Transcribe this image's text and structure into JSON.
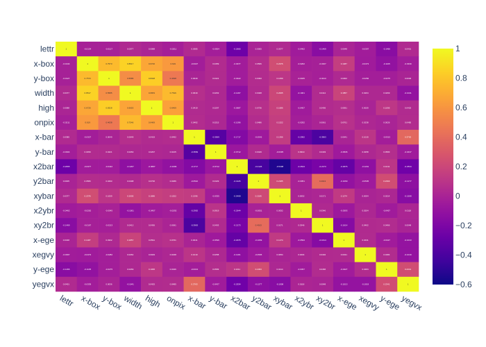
{
  "chart_data": {
    "type": "heatmap",
    "title": "",
    "xlabel": "",
    "ylabel": "",
    "categories": [
      "lettr",
      "x-box",
      "y-box",
      "width",
      "high",
      "onpix",
      "x-bar",
      "y-bar",
      "x2bar",
      "y2bar",
      "xybar",
      "x2ybr",
      "xy2br",
      "x-ege",
      "xegvy",
      "y-ege",
      "yegvx"
    ],
    "values": [
      [
        1,
        -0.0134,
        -0.0127,
        0.0377,
        0.0088,
        -0.0211,
        0.0385,
        -0.0304,
        -0.2665,
        0.0005,
        0.0377,
        -0.0462,
        -0.1469,
        0.0048,
        -0.0397,
        -0.1466,
        0.0401
      ],
      [
        -0.0134,
        1,
        0.7573,
        0.8517,
        0.6726,
        0.619,
        -0.0327,
        0.0459,
        -0.0377,
        0.0566,
        0.2376,
        -0.0262,
        -0.0167,
        0.1487,
        -0.0473,
        -0.1105,
        -0.0339
      ],
      [
        -0.0127,
        0.7573,
        1,
        0.5585,
        0.8328,
        0.4638,
        0.0049,
        0.0421,
        -0.0422,
        0.0493,
        0.1059,
        -0.0045,
        -0.0213,
        0.0302,
        -0.0282,
        -0.0275,
        0.0036
      ],
      [
        0.0377,
        0.8517,
        0.5585,
        1,
        0.6653,
        0.7546,
        0.0649,
        0.0263,
        -0.1267,
        0.0408,
        0.2005,
        -0.1001,
        0.0412,
        0.1857,
        0.0264,
        0.0269,
        -0.1041
      ],
      [
        0.0088,
        0.6726,
        0.8328,
        0.6653,
        1,
        0.6469,
        0.0419,
        0.0297,
        -0.0687,
        0.0736,
        0.1686,
        -0.0457,
        0.0436,
        0.0591,
        0.0029,
        0.1095,
        0.0425
      ],
      [
        -0.0211,
        0.619,
        0.4638,
        0.7546,
        0.6469,
        1,
        0.0492,
        0.0215,
        -0.1096,
        0.0486,
        0.1522,
        -0.0292,
        0.0061,
        0.0761,
        0.0238,
        0.0026,
        0.0485
      ],
      [
        0.0385,
        -0.0327,
        0.0049,
        0.0649,
        0.0419,
        0.0492,
        1,
        -0.3569,
        -0.1717,
        -0.0542,
        0.1396,
        -0.2992,
        -0.3963,
        0.0041,
        0.1019,
        -0.0313,
        0.3763
      ],
      [
        -0.0304,
        0.0459,
        0.0421,
        0.0263,
        0.0297,
        0.0215,
        -0.3569,
        1,
        -0.0712,
        0.0429,
        -0.0335,
        0.0919,
        0.0403,
        -0.0536,
        0.0258,
        0.0583,
        -0.0437
      ],
      [
        -0.2665,
        -0.0377,
        -0.0422,
        -0.1267,
        -0.0687,
        -0.1096,
        -0.1717,
        -0.0712,
        1,
        -0.4126,
        -0.5408,
        -0.2644,
        -0.2173,
        -0.2976,
        -0.1201,
        0.1011,
        -0.2534
      ],
      [
        0.0005,
        0.0566,
        0.0493,
        0.0408,
        0.0736,
        0.0486,
        -0.0542,
        0.0429,
        -0.4126,
        1,
        0.2185,
        -0.0051,
        0.4013,
        -0.1069,
        -0.0505,
        0.2363,
        -0.1277
      ],
      [
        0.0377,
        0.2376,
        0.1059,
        0.2005,
        0.1686,
        0.1522,
        0.1396,
        -0.0335,
        -0.5408,
        0.2185,
        1,
        0.0052,
        0.0171,
        0.1274,
        0.0054,
        0.0214,
        -0.1508
      ],
      [
        -0.0462,
        -0.0262,
        -0.0045,
        -0.1001,
        -0.0457,
        -0.0292,
        -0.2992,
        0.0919,
        -0.2644,
        -0.0051,
        0.0052,
        1,
        0.0346,
        -0.0593,
        0.0204,
        -0.0457,
        0.0118
      ],
      [
        -0.1469,
        -0.0167,
        -0.0213,
        0.0412,
        0.0436,
        0.0061,
        -0.3963,
        0.0403,
        -0.2173,
        0.4013,
        0.0171,
        0.0346,
        1,
        -0.1614,
        0.0402,
        0.0466,
        0.0048
      ],
      [
        0.0048,
        0.1487,
        0.0302,
        0.1857,
        0.0591,
        0.0761,
        0.0041,
        -0.0536,
        -0.2976,
        -0.1069,
        0.1274,
        -0.0593,
        -0.1614,
        1,
        0.0431,
        -0.0427,
        -0.1013
      ],
      [
        -0.0397,
        -0.0473,
        -0.0282,
        0.0264,
        0.0029,
        0.0238,
        0.1019,
        0.0258,
        -0.1201,
        -0.0505,
        0.0054,
        0.0204,
        0.0402,
        0.0431,
        1,
        0.0484,
        -0.1019
      ],
      [
        -0.1466,
        -0.1105,
        -0.0275,
        0.0269,
        0.1095,
        0.0026,
        -0.0313,
        0.0583,
        0.1011,
        0.2363,
        0.0214,
        -0.0457,
        0.0466,
        -0.0427,
        0.0484,
        1,
        0.2341
      ],
      [
        0.0401,
        -0.0339,
        0.0036,
        -0.1041,
        0.0425,
        0.0485,
        0.3763,
        -0.0437,
        -0.2534,
        -0.1277,
        -0.1508,
        0.0118,
        0.0048,
        -0.1013,
        -0.1019,
        0.2341,
        1
      ]
    ],
    "zmin": -0.6,
    "zmax": 1,
    "colorscale": "plasma",
    "colorbar_ticks": [
      1,
      0.8,
      0.6,
      0.4,
      0.2,
      0,
      -0.2,
      -0.4,
      -0.6
    ],
    "colorbar_tick_labels": [
      "1",
      "0.8",
      "0.6",
      "0.4",
      "0.2",
      "0",
      "−0.2",
      "−0.4",
      "−0.6"
    ],
    "grid": false,
    "legend": "right"
  }
}
